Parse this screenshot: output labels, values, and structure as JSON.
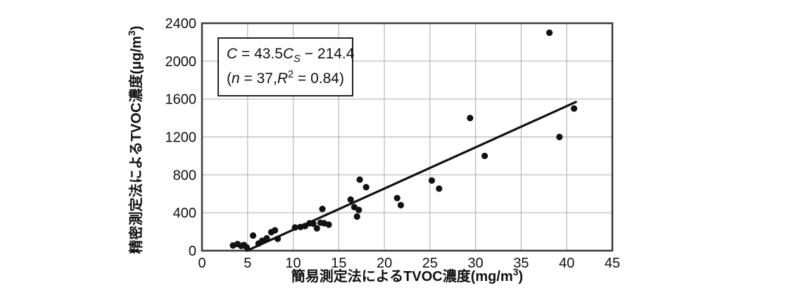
{
  "figure": {
    "background": "#ffffff",
    "frame_color": "#3a3a3a",
    "grid_color": "#b8b8b8",
    "point_color": "#111111",
    "regression_line_color": "#111111"
  },
  "equation_box": {
    "line1": {
      "var1": "C",
      "equals": " = 43.5",
      "var2": "C",
      "sub": "S",
      "tail": " − 214.4"
    },
    "line2": {
      "open": "(",
      "n_var": "n",
      "mid": " = 37,",
      "r_var": "R",
      "sup": "2",
      "tail": " = 0.84)"
    }
  },
  "chart_data": {
    "type": "scatter",
    "title": "",
    "xlabel": "簡易測定法によるTVOC濃度(mg/m³)",
    "ylabel": "精密測定法によるTVOC濃度(μg/m³)",
    "xlabel_parts": {
      "main": "簡易測定法によるTVOC濃度(mg/m",
      "sup": "3",
      "close": ")"
    },
    "ylabel_parts": {
      "main": "精密測定法によるTVOC濃度(μg/m",
      "sup": "3",
      "close": ")"
    },
    "xlim": [
      0,
      45
    ],
    "ylim": [
      0,
      2400
    ],
    "x_ticks": [
      0,
      5,
      10,
      15,
      20,
      25,
      30,
      35,
      40,
      45
    ],
    "y_ticks": [
      0,
      400,
      800,
      1200,
      1600,
      2000,
      2400
    ],
    "grid": true,
    "legend": false,
    "points": [
      [
        3.4,
        55
      ],
      [
        3.9,
        70
      ],
      [
        4.3,
        50
      ],
      [
        4.6,
        60
      ],
      [
        4.9,
        35
      ],
      [
        5.6,
        160
      ],
      [
        6.2,
        75
      ],
      [
        6.6,
        105
      ],
      [
        7.1,
        130
      ],
      [
        7.6,
        195
      ],
      [
        8.0,
        215
      ],
      [
        8.3,
        125
      ],
      [
        10.2,
        245
      ],
      [
        10.8,
        250
      ],
      [
        11.3,
        260
      ],
      [
        11.8,
        290
      ],
      [
        12.2,
        285
      ],
      [
        12.6,
        235
      ],
      [
        13.0,
        295
      ],
      [
        13.2,
        440
      ],
      [
        13.4,
        290
      ],
      [
        13.9,
        275
      ],
      [
        16.3,
        540
      ],
      [
        16.7,
        460
      ],
      [
        17.0,
        360
      ],
      [
        17.2,
        430
      ],
      [
        17.3,
        750
      ],
      [
        18.0,
        670
      ],
      [
        21.4,
        555
      ],
      [
        21.8,
        480
      ],
      [
        25.2,
        740
      ],
      [
        26.0,
        655
      ],
      [
        29.4,
        1400
      ],
      [
        31.0,
        1000
      ],
      [
        38.1,
        2300
      ],
      [
        39.2,
        1200
      ],
      [
        40.8,
        1500
      ]
    ],
    "regression": {
      "slope": 43.5,
      "intercept": -214.4,
      "x_start": 4.93,
      "x_end": 41.0,
      "n": 37,
      "r_squared": 0.84,
      "equation_text": "C = 43.5Cs − 214.4 (n = 37, R² = 0.84)"
    }
  }
}
